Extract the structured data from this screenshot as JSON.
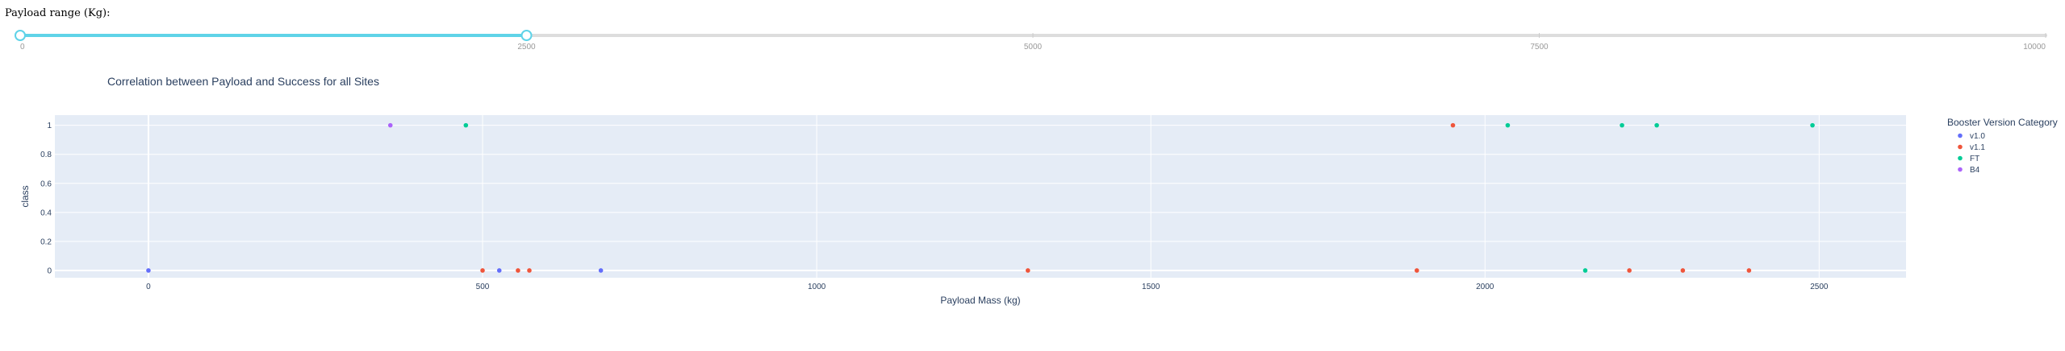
{
  "slider": {
    "label": "Payload range (Kg):",
    "min": 0,
    "max": 10000,
    "value": [
      0,
      2500
    ],
    "marks": [
      "0",
      "2500",
      "5000",
      "7500",
      "10000"
    ],
    "track_color": "#dddddd",
    "active_color": "#5fd3e8"
  },
  "chart_data": {
    "type": "scatter",
    "title": "Correlation between Payload and Success for all Sites",
    "xlabel": "Payload Mass (kg)",
    "ylabel": "class",
    "xlim": [
      -140,
      2630
    ],
    "ylim": [
      -0.05,
      1.07
    ],
    "x_ticks": [
      0,
      500,
      1000,
      1500,
      2000,
      2500
    ],
    "y_ticks": [
      0,
      0.2,
      0.4,
      0.6,
      0.8,
      1
    ],
    "grid": true,
    "legend": {
      "title": "Booster Version Category",
      "placement": "right"
    },
    "series": [
      {
        "name": "v1.0",
        "color": "#636efa",
        "points": [
          [
            0,
            0
          ],
          [
            525,
            0
          ],
          [
            677,
            0
          ]
        ]
      },
      {
        "name": "v1.1",
        "color": "#ef553b",
        "points": [
          [
            500,
            0
          ],
          [
            553,
            0
          ],
          [
            570,
            0
          ],
          [
            1316,
            0
          ],
          [
            1898,
            0
          ],
          [
            1952,
            1
          ],
          [
            2216,
            0
          ],
          [
            2296,
            0
          ],
          [
            2395,
            0
          ]
        ]
      },
      {
        "name": "FT",
        "color": "#00cc96",
        "points": [
          [
            475,
            1
          ],
          [
            2034,
            1
          ],
          [
            2150,
            0
          ],
          [
            2205,
            1
          ],
          [
            2257,
            1
          ],
          [
            2490,
            1
          ]
        ]
      },
      {
        "name": "B4",
        "color": "#ab63fa",
        "points": [
          [
            362,
            1
          ]
        ]
      }
    ]
  }
}
